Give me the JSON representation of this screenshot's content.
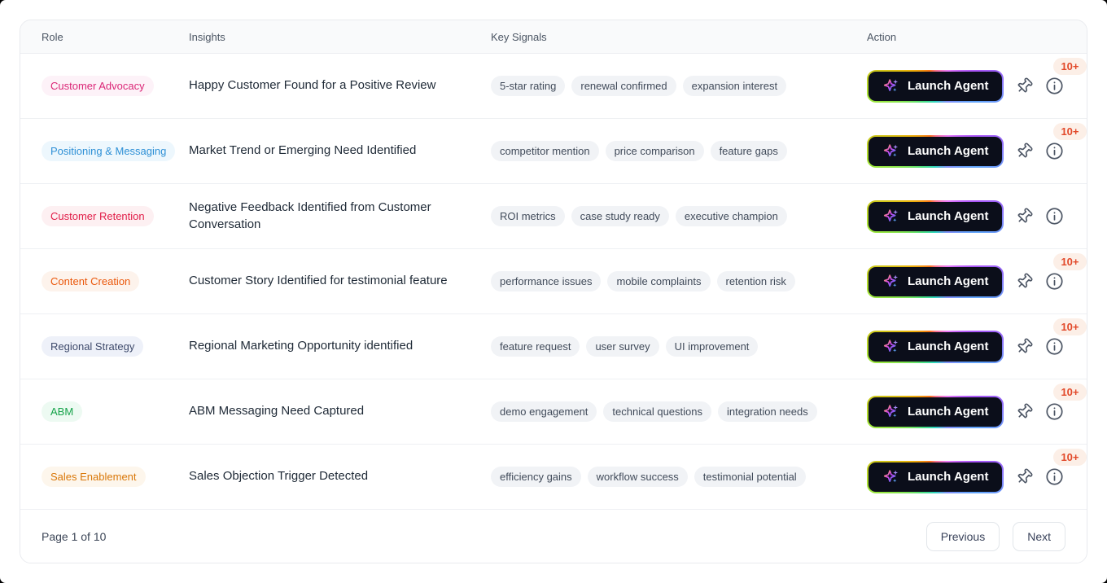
{
  "table": {
    "columns": [
      "Role",
      "Insights",
      "Key Signals",
      "Action"
    ],
    "rows": [
      {
        "role": "Customer Advocacy",
        "role_color": "#db2777",
        "role_bg": "#fdf2f8",
        "insight": "Happy Customer Found for a Positive Review",
        "signals": [
          "5-star rating",
          "renewal confirmed",
          "expansion interest"
        ],
        "count_badge": "10+"
      },
      {
        "role": "Positioning & Messaging",
        "role_color": "#2e90d6",
        "role_bg": "#edf7fd",
        "insight": "Market Trend or Emerging Need Identified",
        "signals": [
          "competitor mention",
          "price comparison",
          "feature gaps"
        ],
        "count_badge": "10+"
      },
      {
        "role": "Customer Retention",
        "role_color": "#e11d48",
        "role_bg": "#fdf0f2",
        "insight": "Negative Feedback Identified from Customer Conversation",
        "signals": [
          "ROI metrics",
          "case study ready",
          "executive champion"
        ],
        "count_badge": null
      },
      {
        "role": "Content Creation",
        "role_color": "#ea580c",
        "role_bg": "#fdf3ec",
        "insight": "Customer Story Identified for testimonial feature",
        "signals": [
          "performance issues",
          "mobile complaints",
          "retention risk"
        ],
        "count_badge": "10+"
      },
      {
        "role": "Regional Strategy",
        "role_color": "#3e4a6b",
        "role_bg": "#eef1f9",
        "insight": "Regional Marketing Opportunity identified",
        "signals": [
          "feature request",
          "user survey",
          "UI improvement"
        ],
        "count_badge": "10+"
      },
      {
        "role": "ABM",
        "role_color": "#16a34a",
        "role_bg": "#edfaf2",
        "insight": "ABM Messaging Need Captured",
        "signals": [
          "demo engagement",
          "technical questions",
          "integration needs"
        ],
        "count_badge": "10+"
      },
      {
        "role": "Sales Enablement",
        "role_color": "#d97708",
        "role_bg": "#fdf6ec",
        "insight": "Sales Objection Trigger Detected",
        "signals": [
          "efficiency gains",
          "workflow success",
          "testimonial potential"
        ],
        "count_badge": "10+"
      }
    ]
  },
  "actions": {
    "launch_label": "Launch Agent"
  },
  "icons": {
    "sparkles": "sparkles-icon",
    "pin": "pin-icon",
    "info": "info-icon"
  },
  "colors": {
    "count_badge_text": "#e2492a",
    "count_badge_bg": "#fcefe7",
    "launch_button_bg": "#0b0e1a"
  },
  "footer": {
    "page_status": "Page 1 of 10",
    "previous_label": "Previous",
    "next_label": "Next"
  }
}
